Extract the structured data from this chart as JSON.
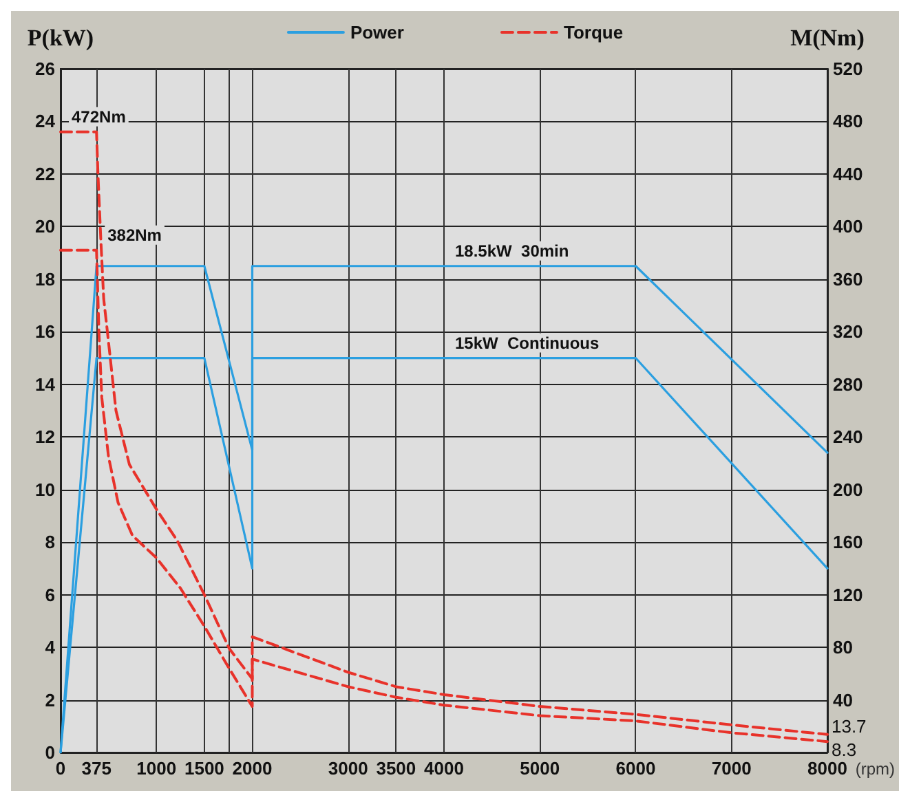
{
  "chart_data": {
    "type": "line",
    "ylabel": "P(kW)",
    "y2label": "M(Nm)",
    "xlabel": "(rpm)",
    "xlim": [
      0,
      8000
    ],
    "xticks": [
      0,
      375,
      1000,
      1500,
      {
        "value": 1750,
        "label": null
      },
      2000,
      3000,
      3500,
      4000,
      5000,
      6000,
      7000,
      8000
    ],
    "ylim": [
      0,
      26
    ],
    "yticks": [
      0,
      2,
      4,
      6,
      8,
      10,
      12,
      14,
      16,
      18,
      20,
      22,
      24,
      26
    ],
    "y2lim": [
      0,
      520
    ],
    "y2ticks": [
      40,
      80,
      120,
      160,
      200,
      240,
      280,
      320,
      360,
      400,
      440,
      480,
      520
    ],
    "grid": true,
    "legend": "top",
    "marker": "none",
    "series": [
      {
        "name": "Power",
        "color": "#2b9fe0",
        "line_style": "solid",
        "x": [
          0,
          375,
          1500,
          2000,
          2000,
          6000,
          8000
        ],
        "values": [
          0,
          18.5,
          18.5,
          11.5,
          18.5,
          18.5,
          11.4
        ]
      },
      {
        "color": "#2b9fe0",
        "line_style": "solid",
        "x": [
          0,
          375,
          1500,
          2000,
          2000,
          6000,
          8000
        ],
        "values": [
          0,
          15,
          15,
          7,
          15,
          15,
          7
        ]
      },
      {
        "name": "Torque",
        "color": "#e8322a",
        "line_style": "dashed",
        "axis": "y2",
        "x": [
          0,
          375,
          390,
          420,
          450,
          487,
          578,
          718,
          1000,
          1218,
          1500,
          1760,
          2000,
          2000,
          3000,
          3500,
          4000,
          5000,
          6000,
          7000,
          8000
        ],
        "values": [
          472,
          472,
          440,
          390,
          345,
          321,
          260,
          219,
          185,
          161,
          120,
          79,
          56,
          88,
          61,
          50,
          44,
          35,
          29,
          21,
          13.7
        ],
        "value_labels": [
          null,
          null,
          null,
          null,
          null,
          null,
          null,
          null,
          null,
          null,
          null,
          null,
          null,
          null,
          null,
          null,
          null,
          null,
          null,
          null,
          "13.7"
        ]
      },
      {
        "color": "#e8322a",
        "line_style": "dashed",
        "axis": "y2",
        "x": [
          0,
          375,
          400,
          430,
          500,
          600,
          750,
          1000,
          1250,
          1500,
          1750,
          2000,
          2000,
          3000,
          3500,
          4000,
          5000,
          6000,
          7000,
          8000
        ],
        "values": [
          382,
          382,
          320,
          270,
          225,
          190,
          165,
          148,
          125,
          96,
          65,
          35,
          71,
          50,
          42,
          36,
          28,
          24,
          15,
          8.3
        ],
        "value_labels": [
          null,
          null,
          null,
          null,
          null,
          null,
          null,
          null,
          null,
          null,
          null,
          null,
          null,
          null,
          null,
          null,
          null,
          null,
          null,
          "8.3"
        ]
      }
    ],
    "annotations": [
      {
        "text": "472Nm",
        "x": 0,
        "y": 23.6
      },
      {
        "text": "382Nm",
        "x": 375,
        "y": 19.1
      },
      {
        "text": "18.5kW  30min",
        "x": 4000,
        "y": 18.5
      },
      {
        "text": "15kW  Continuous",
        "x": 4000,
        "y": 15
      }
    ]
  }
}
